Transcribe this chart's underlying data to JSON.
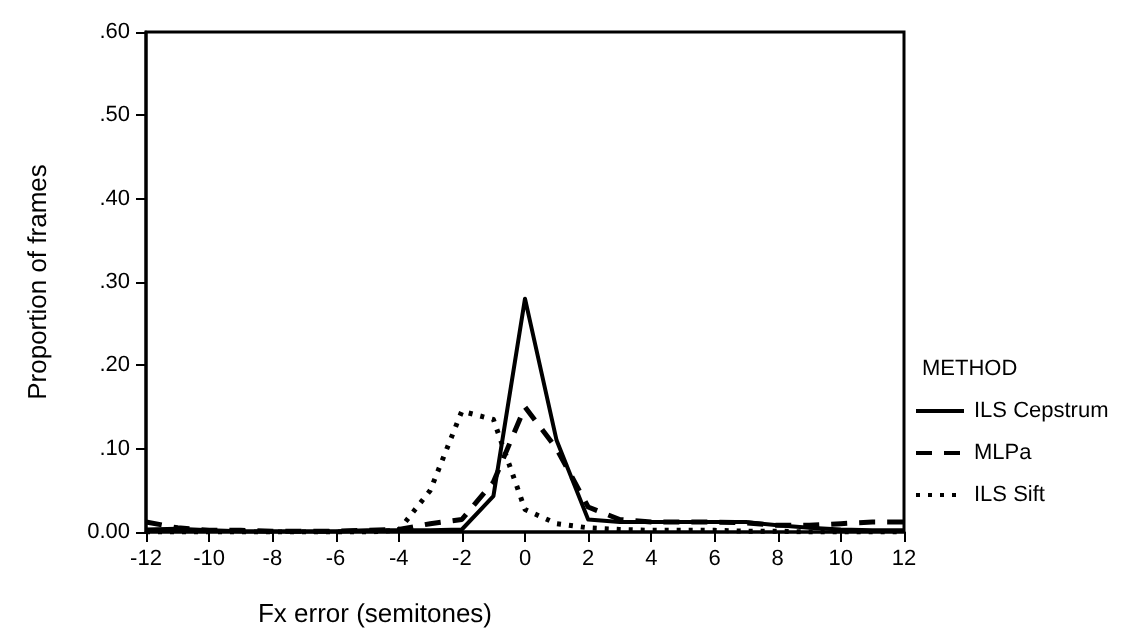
{
  "chart_data": {
    "type": "line",
    "xlabel": "Fx error (semitones)",
    "ylabel": "Proportion of frames",
    "legend_title": "METHOD",
    "x": [
      -12,
      -11,
      -10,
      -9,
      -8,
      -7,
      -6,
      -5,
      -4,
      -3,
      -2,
      -1,
      0,
      1,
      2,
      3,
      4,
      5,
      6,
      7,
      8,
      9,
      10,
      11,
      12
    ],
    "series": [
      {
        "name": "ILS Cepstrum",
        "color": "#000000",
        "line_style": "solid",
        "values": [
          0.003,
          0.004,
          0.002,
          0.001,
          0.001,
          0.001,
          0.001,
          0.002,
          0.002,
          0.002,
          0.003,
          0.043,
          0.28,
          0.11,
          0.015,
          0.012,
          0.012,
          0.012,
          0.012,
          0.012,
          0.008,
          0.005,
          0.003,
          0.002,
          0.002
        ]
      },
      {
        "name": "MLPa",
        "color": "#000000",
        "line_style": "dashed",
        "values": [
          0.012,
          0.005,
          0.002,
          0.002,
          0.001,
          0.001,
          0.001,
          0.002,
          0.003,
          0.01,
          0.015,
          0.06,
          0.15,
          0.1,
          0.03,
          0.015,
          0.012,
          0.012,
          0.012,
          0.011,
          0.008,
          0.008,
          0.01,
          0.012,
          0.012
        ]
      },
      {
        "name": "ILS Sift",
        "color": "#000000",
        "line_style": "dotted",
        "values": [
          0,
          0,
          0,
          0,
          0,
          0,
          0,
          0,
          0.002,
          0.05,
          0.145,
          0.135,
          0.027,
          0.01,
          0.005,
          0.003,
          0.002,
          0.002,
          0.002,
          0.001,
          0.001,
          0,
          0,
          0,
          0
        ]
      }
    ],
    "xlim": [
      -12,
      12
    ],
    "xticks": [
      -12,
      -10,
      -8,
      -6,
      -4,
      -2,
      0,
      2,
      4,
      6,
      8,
      10,
      12
    ],
    "ylim": [
      0,
      0.6
    ],
    "yticks": [
      {
        "value": 0,
        "label": "0.00"
      },
      {
        "value": 0.1,
        "label": ".10"
      },
      {
        "value": 0.2,
        "label": ".20"
      },
      {
        "value": 0.3,
        "label": ".30"
      },
      {
        "value": 0.4,
        "label": ".40"
      },
      {
        "value": 0.5,
        "label": ".50"
      },
      {
        "value": 0.6,
        "label": ".60"
      }
    ],
    "grid": false,
    "legend": "right",
    "marker": "none"
  }
}
